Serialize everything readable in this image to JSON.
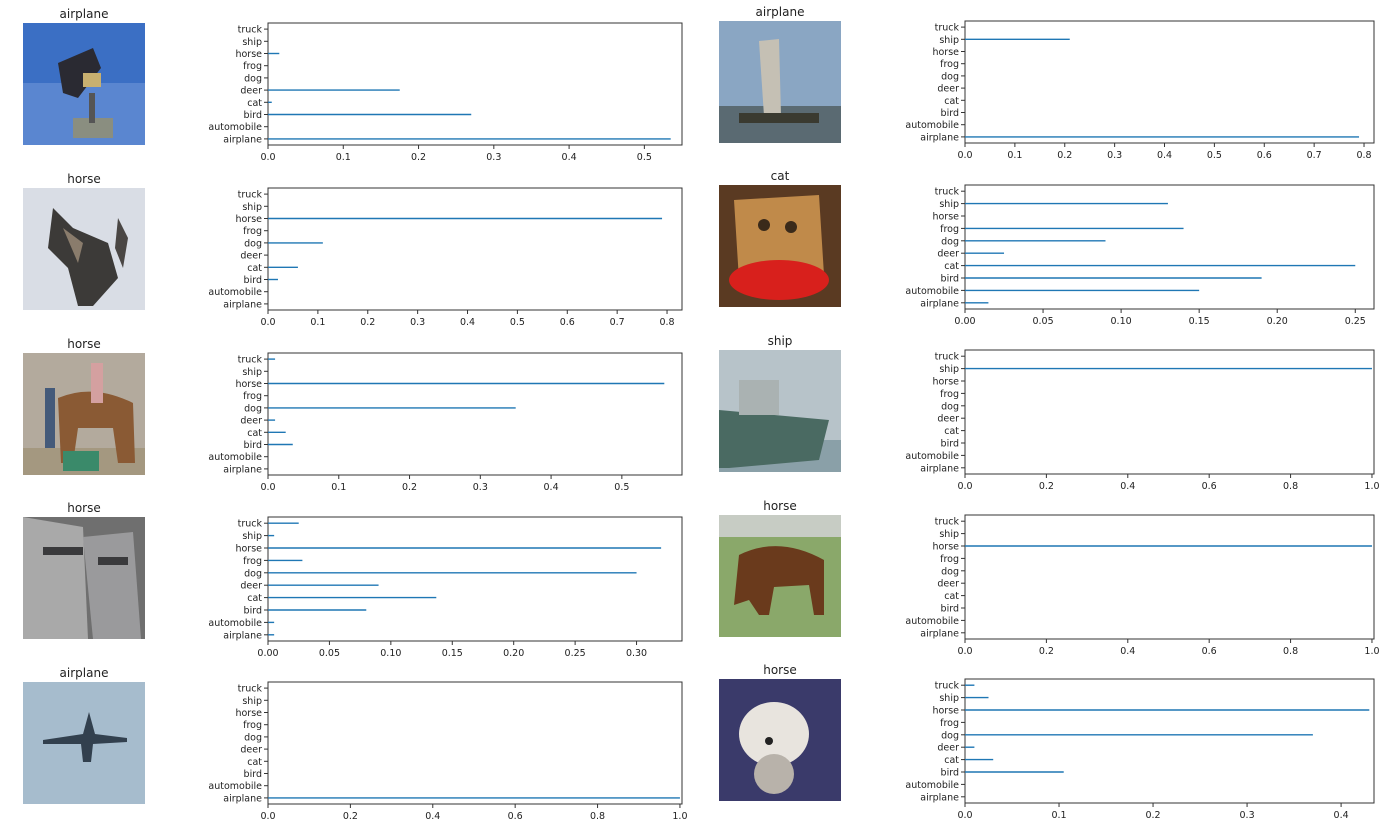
{
  "categories": [
    "airplane",
    "automobile",
    "bird",
    "cat",
    "deer",
    "dog",
    "frog",
    "horse",
    "ship",
    "truck"
  ],
  "colors": {
    "bar": "#1f77b4",
    "axis": "#333333"
  },
  "panels": [
    {
      "title": "airplane",
      "image": "airplane-weathervane-photo",
      "chart_data": {
        "type": "bar",
        "orientation": "horizontal",
        "values": [
          0.535,
          0.0,
          0.27,
          0.005,
          0.175,
          0.0,
          0.0,
          0.015,
          0.0,
          0.0
        ],
        "xlim": [
          0,
          0.55
        ],
        "xticks": [
          "0.0",
          "0.1",
          "0.2",
          "0.3",
          "0.4",
          "0.5"
        ]
      }
    },
    {
      "title": "airplane",
      "image": "sailboat-photo",
      "chart_data": {
        "type": "bar",
        "orientation": "horizontal",
        "values": [
          0.79,
          0.0,
          0.0,
          0.0,
          0.0,
          0.0,
          0.0,
          0.0,
          0.21,
          0.0
        ],
        "xlim": [
          0,
          0.82
        ],
        "xticks": [
          "0.0",
          "0.1",
          "0.2",
          "0.3",
          "0.4",
          "0.5",
          "0.6",
          "0.7",
          "0.8"
        ]
      }
    },
    {
      "title": "horse",
      "image": "cat-photo",
      "chart_data": {
        "type": "bar",
        "orientation": "horizontal",
        "values": [
          0.0,
          0.0,
          0.02,
          0.06,
          0.0,
          0.11,
          0.0,
          0.79,
          0.0,
          0.0
        ],
        "xlim": [
          0,
          0.83
        ],
        "xticks": [
          "0.0",
          "0.1",
          "0.2",
          "0.3",
          "0.4",
          "0.5",
          "0.6",
          "0.7",
          "0.8"
        ]
      }
    },
    {
      "title": "cat",
      "image": "cat-with-red-object-photo",
      "chart_data": {
        "type": "bar",
        "orientation": "horizontal",
        "values": [
          0.015,
          0.15,
          0.19,
          0.25,
          0.025,
          0.09,
          0.14,
          0.0,
          0.13,
          0.0
        ],
        "xlim": [
          0,
          0.262
        ],
        "xticks": [
          "0.00",
          "0.05",
          "0.10",
          "0.15",
          "0.20",
          "0.25"
        ]
      }
    },
    {
      "title": "horse",
      "image": "people-with-horse-photo",
      "chart_data": {
        "type": "bar",
        "orientation": "horizontal",
        "values": [
          0.0,
          0.0,
          0.035,
          0.025,
          0.01,
          0.35,
          0.0,
          0.56,
          0.0,
          0.01
        ],
        "xlim": [
          0,
          0.585
        ],
        "xticks": [
          "0.0",
          "0.1",
          "0.2",
          "0.3",
          "0.4",
          "0.5"
        ]
      }
    },
    {
      "title": "ship",
      "image": "ship-photo",
      "chart_data": {
        "type": "bar",
        "orientation": "horizontal",
        "values": [
          0.0,
          0.0,
          0.0,
          0.0,
          0.0,
          0.0,
          0.0,
          0.0,
          1.0,
          0.0
        ],
        "xlim": [
          0,
          1.005
        ],
        "xticks": [
          "0.0",
          "0.2",
          "0.4",
          "0.6",
          "0.8",
          "1.0"
        ]
      }
    },
    {
      "title": "horse",
      "image": "horse-head-closeup-photo",
      "chart_data": {
        "type": "bar",
        "orientation": "horizontal",
        "values": [
          0.005,
          0.005,
          0.08,
          0.137,
          0.09,
          0.3,
          0.028,
          0.32,
          0.005,
          0.025
        ],
        "xlim": [
          0,
          0.337
        ],
        "xticks": [
          "0.00",
          "0.05",
          "0.10",
          "0.15",
          "0.20",
          "0.25",
          "0.30"
        ]
      }
    },
    {
      "title": "horse",
      "image": "grazing-horse-photo",
      "chart_data": {
        "type": "bar",
        "orientation": "horizontal",
        "values": [
          0.0,
          0.0,
          0.0,
          0.0,
          0.0,
          0.0,
          0.0,
          1.0,
          0.0,
          0.0
        ],
        "xlim": [
          0,
          1.005
        ],
        "xticks": [
          "0.0",
          "0.2",
          "0.4",
          "0.6",
          "0.8",
          "1.0"
        ]
      }
    },
    {
      "title": "airplane",
      "image": "airplane-in-sky-photo",
      "chart_data": {
        "type": "bar",
        "orientation": "horizontal",
        "values": [
          1.0,
          0.0,
          0.0,
          0.0,
          0.0,
          0.0,
          0.0,
          0.0,
          0.0,
          0.0
        ],
        "xlim": [
          0,
          1.005
        ],
        "xticks": [
          "0.0",
          "0.2",
          "0.4",
          "0.6",
          "0.8",
          "1.0"
        ]
      }
    },
    {
      "title": "horse",
      "image": "white-dog-photo",
      "chart_data": {
        "type": "bar",
        "orientation": "horizontal",
        "values": [
          0.0,
          0.0,
          0.105,
          0.03,
          0.01,
          0.37,
          0.0,
          0.43,
          0.025,
          0.01
        ],
        "xlim": [
          0,
          0.435
        ],
        "xticks": [
          "0.0",
          "0.1",
          "0.2",
          "0.3",
          "0.4"
        ]
      }
    }
  ]
}
